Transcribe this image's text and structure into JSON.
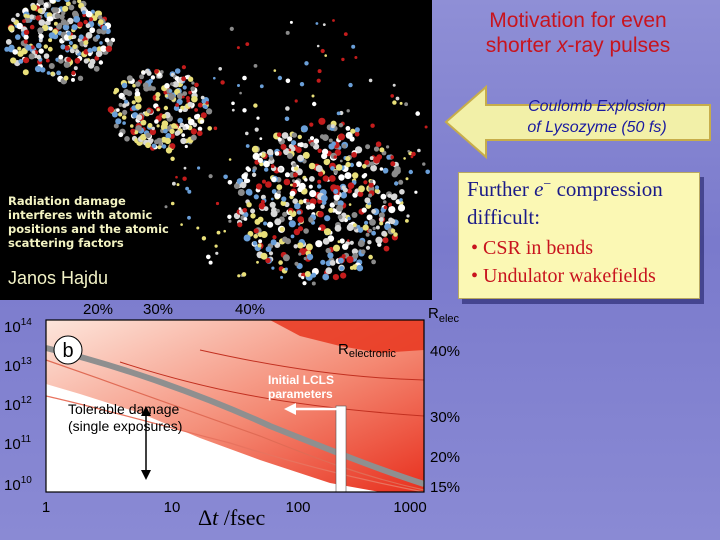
{
  "title": {
    "line1": "Motivation for even",
    "line2_pre": "shorter ",
    "line2_x": "x",
    "line2_post": "-ray pulses"
  },
  "callout": {
    "line1": "Coulomb Explosion",
    "line2": "of Lysozyme (50 fs)"
  },
  "note": {
    "line1": "Further ",
    "symbol": "e",
    "sup": "−",
    "line1_end": " compression",
    "line2": "difficult:",
    "bullet1": "CSR in bends",
    "bullet2": "Undulator wakefields",
    "bullet_glyph": "•"
  },
  "damage_text": {
    "line1": "Radiation damage",
    "line2": "interferes with atomic",
    "line3": "positions and the atomic",
    "line4": "scattering factors"
  },
  "author": "Janos Hajdu",
  "plot": {
    "panel_label": "b",
    "relec": "R",
    "relec_sub": "elec",
    "relectronic": "R",
    "relectronic_sub": "electronic",
    "top_ticks": [
      "20%",
      "30%",
      "40%"
    ],
    "right_ticks": [
      "40%",
      "30%",
      "20%",
      "15%"
    ],
    "y_ticks": [
      {
        "base": "10",
        "exp": "14"
      },
      {
        "base": "10",
        "exp": "13"
      },
      {
        "base": "10",
        "exp": "12"
      },
      {
        "base": "10",
        "exp": "11"
      },
      {
        "base": "10",
        "exp": "10"
      }
    ],
    "x_ticks": [
      "1",
      "10",
      "100",
      "1000"
    ],
    "lcls_label_1": "Initial  LCLS",
    "lcls_label_2": "parameters",
    "tolerable_1": "Tolerable damage",
    "tolerable_2": "(single exposures)",
    "xlabel_delta": "Δ",
    "xlabel_t": "t",
    "xlabel_unit": " /fsec"
  },
  "colors": {
    "title": "#c8141e",
    "callout_text": "#1a1aa0",
    "note_bg": "#fbf8b4",
    "bullet": "#c8141e",
    "bg": "#8080d0"
  }
}
